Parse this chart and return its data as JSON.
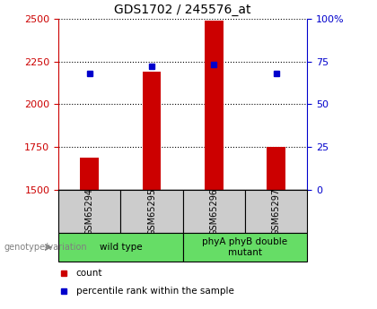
{
  "title": "GDS1702 / 245576_at",
  "samples": [
    "GSM65294",
    "GSM65295",
    "GSM65296",
    "GSM65297"
  ],
  "count_values": [
    1690,
    2190,
    2490,
    1750
  ],
  "percentile_values": [
    68,
    72,
    73,
    68
  ],
  "ylim_left": [
    1500,
    2500
  ],
  "ylim_right": [
    0,
    100
  ],
  "yticks_left": [
    1500,
    1750,
    2000,
    2250,
    2500
  ],
  "yticks_right": [
    0,
    25,
    50,
    75,
    100
  ],
  "ytick_labels_right": [
    "0",
    "25",
    "50",
    "75",
    "100%"
  ],
  "bar_color": "#cc0000",
  "marker_color": "#0000cc",
  "bar_width": 0.3,
  "groups": [
    {
      "label": "wild type",
      "samples": [
        0,
        1
      ]
    },
    {
      "label": "phyA phyB double\nmutant",
      "samples": [
        2,
        3
      ]
    }
  ],
  "group_bg_color": "#66dd66",
  "sample_bg_color": "#cccccc",
  "legend_items": [
    {
      "color": "#cc0000",
      "label": "count"
    },
    {
      "color": "#0000cc",
      "label": "percentile rank within the sample"
    }
  ],
  "genotype_label": "genotype/variation",
  "left_yaxis_color": "#cc0000",
  "right_yaxis_color": "#0000cc",
  "grid_color": "#000000",
  "title_fontsize": 10
}
